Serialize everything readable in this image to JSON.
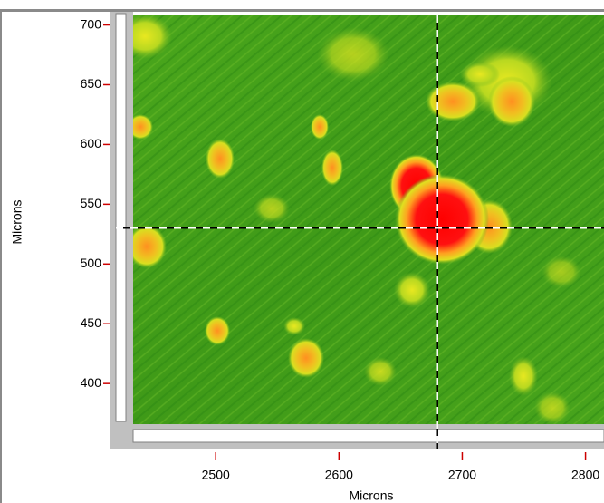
{
  "chart_data": {
    "type": "heatmap",
    "xlabel": "Microns",
    "ylabel": "Microns",
    "xlim": [
      2433,
      2815
    ],
    "ylim": [
      366,
      708
    ],
    "xticks": [
      2500,
      2600,
      2700,
      2800
    ],
    "yticks": [
      400,
      450,
      500,
      550,
      600,
      650,
      700
    ],
    "tick_color": "#cc0000",
    "crosshair": {
      "x": 2680,
      "y": 530
    }
  }
}
